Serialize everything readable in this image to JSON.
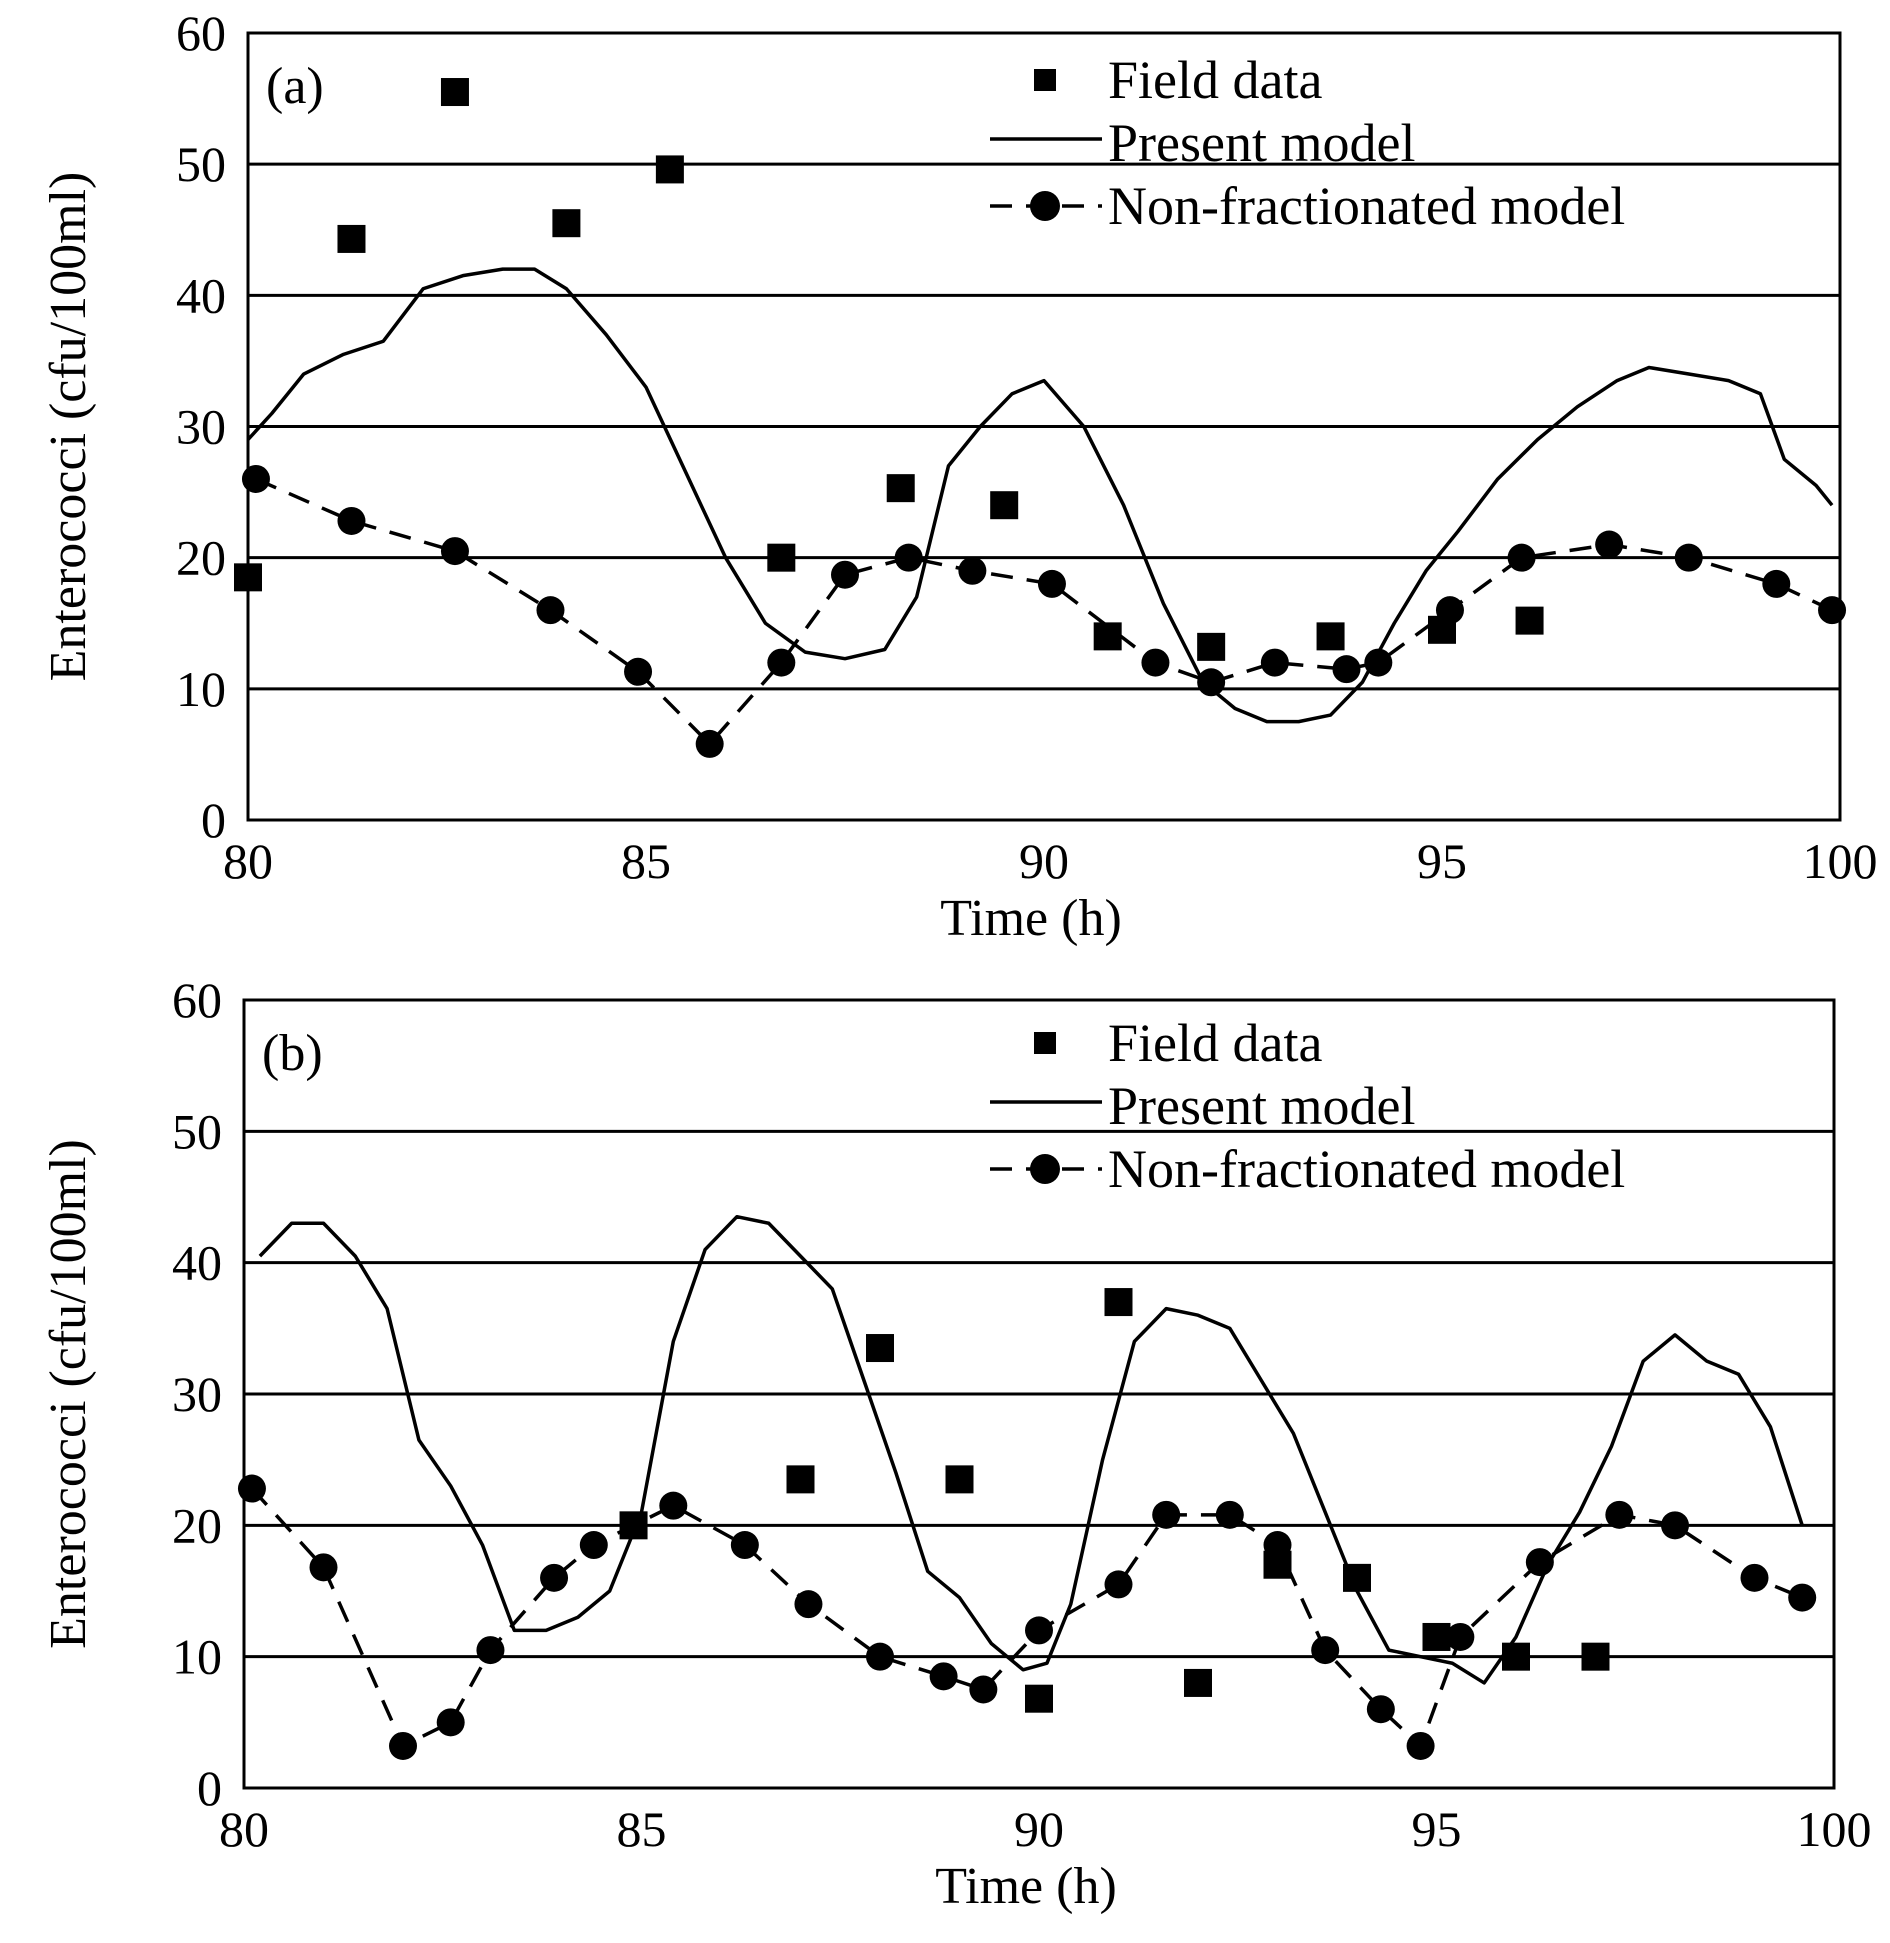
{
  "chart_data": [
    {
      "type": "line",
      "panel_label": "(a)",
      "xlabel": "Time (h)",
      "ylabel": "Enterococci (cfu/100ml)",
      "xlim": [
        80,
        100
      ],
      "ylim": [
        0,
        60
      ],
      "xticks": [
        80,
        85,
        90,
        95,
        100
      ],
      "yticks": [
        0,
        10,
        20,
        30,
        40,
        50,
        60
      ],
      "grid": "horizontal",
      "legend_position": "top-right",
      "series": [
        {
          "name": "Field data",
          "marker": "square",
          "x": [
            80.0,
            81.3,
            82.6,
            84.0,
            85.3,
            86.7,
            88.2,
            89.5,
            90.8,
            92.1,
            93.6,
            95.0,
            96.1
          ],
          "y": [
            18.5,
            44.3,
            55.5,
            45.5,
            49.6,
            20.0,
            25.3,
            24.0,
            14.0,
            13.2,
            14.0,
            14.5,
            15.2
          ]
        },
        {
          "name": "Present model",
          "marker": "none",
          "x": [
            80.0,
            80.3,
            80.7,
            81.2,
            81.7,
            82.2,
            82.7,
            83.2,
            83.6,
            84.0,
            84.5,
            85.0,
            85.5,
            86.0,
            86.5,
            87.0,
            87.5,
            88.0,
            88.4,
            88.8,
            89.2,
            89.6,
            90.0,
            90.5,
            91.0,
            91.5,
            92.0,
            92.4,
            92.8,
            93.2,
            93.6,
            94.0,
            94.4,
            94.8,
            95.2,
            95.7,
            96.2,
            96.7,
            97.2,
            97.6,
            98.1,
            98.6,
            99.0,
            99.3,
            99.7,
            99.9
          ],
          "y": [
            29.0,
            31.0,
            34.0,
            35.5,
            36.5,
            40.5,
            41.5,
            42.0,
            42.0,
            40.5,
            37.0,
            33.0,
            26.5,
            20.0,
            15.0,
            12.8,
            12.3,
            13.0,
            17.0,
            27.0,
            30.0,
            32.5,
            33.5,
            30.0,
            24.0,
            16.5,
            10.5,
            8.5,
            7.5,
            7.5,
            8.0,
            10.5,
            15.0,
            19.0,
            22.0,
            26.0,
            29.0,
            31.5,
            33.5,
            34.5,
            34.0,
            33.5,
            32.5,
            27.5,
            25.5,
            24.0
          ]
        },
        {
          "name": "Non-fractionated model",
          "marker": "circle",
          "x": [
            80.1,
            81.3,
            82.6,
            83.8,
            84.9,
            85.8,
            86.7,
            87.5,
            88.3,
            89.1,
            90.1,
            91.4,
            92.1,
            92.9,
            93.8,
            94.2,
            95.1,
            96.0,
            97.1,
            98.1,
            99.2,
            99.9
          ],
          "y": [
            26.0,
            22.8,
            20.5,
            16.0,
            11.3,
            5.8,
            12.0,
            18.7,
            20.0,
            19.0,
            18.0,
            12.0,
            10.5,
            12.0,
            11.5,
            12.0,
            16.0,
            20.0,
            21.0,
            20.0,
            18.0,
            16.0
          ]
        }
      ]
    },
    {
      "type": "line",
      "panel_label": "(b)",
      "xlabel": "Time (h)",
      "ylabel": "Enterococci (cfu/100ml)",
      "xlim": [
        80,
        100
      ],
      "ylim": [
        0,
        60
      ],
      "xticks": [
        80,
        85,
        90,
        95,
        100
      ],
      "yticks": [
        0,
        10,
        20,
        30,
        40,
        50,
        60
      ],
      "grid": "horizontal",
      "legend_position": "top-right",
      "series": [
        {
          "name": "Field data",
          "marker": "square",
          "x": [
            84.9,
            87.0,
            88.0,
            89.0,
            90.0,
            91.0,
            92.0,
            93.0,
            94.0,
            95.0,
            96.0,
            97.0
          ],
          "y": [
            20.0,
            23.5,
            33.5,
            23.5,
            6.8,
            37.0,
            8.0,
            17.0,
            16.0,
            11.5,
            10.0,
            10.0
          ]
        },
        {
          "name": "Present model",
          "marker": "none",
          "x": [
            80.2,
            80.6,
            81.0,
            81.4,
            81.8,
            82.2,
            82.6,
            83.0,
            83.4,
            83.8,
            84.2,
            84.6,
            85.0,
            85.4,
            85.8,
            86.2,
            86.6,
            87.0,
            87.4,
            87.8,
            88.2,
            88.6,
            89.0,
            89.4,
            89.8,
            90.1,
            90.4,
            90.8,
            91.2,
            91.6,
            92.0,
            92.4,
            92.8,
            93.2,
            93.6,
            94.0,
            94.4,
            94.8,
            95.2,
            95.6,
            96.0,
            96.4,
            96.8,
            97.2,
            97.6,
            98.0,
            98.4,
            98.8,
            99.2,
            99.6
          ],
          "y": [
            40.5,
            43.0,
            43.0,
            40.5,
            36.5,
            26.5,
            23.0,
            18.5,
            12.0,
            12.0,
            13.0,
            15.0,
            21.0,
            34.0,
            41.0,
            43.5,
            43.0,
            40.5,
            38.0,
            31.0,
            24.0,
            16.5,
            14.5,
            11.0,
            9.0,
            9.5,
            14.0,
            25.0,
            34.0,
            36.5,
            36.0,
            35.0,
            31.0,
            27.0,
            21.0,
            15.0,
            10.5,
            10.0,
            9.5,
            8.0,
            11.5,
            17.0,
            21.0,
            26.0,
            32.5,
            34.5,
            32.5,
            31.5,
            27.5,
            20.0
          ]
        },
        {
          "name": "Non-fractionated model",
          "marker": "circle",
          "x": [
            80.1,
            81.0,
            82.0,
            82.6,
            83.1,
            83.9,
            84.4,
            85.4,
            86.3,
            87.1,
            88.0,
            88.8,
            89.3,
            90.0,
            91.0,
            91.6,
            92.4,
            93.0,
            93.6,
            94.3,
            94.8,
            95.3,
            96.3,
            97.3,
            98.0,
            99.0,
            99.6
          ],
          "y": [
            22.8,
            16.8,
            3.2,
            5.0,
            10.5,
            16.0,
            18.5,
            21.5,
            18.5,
            14.0,
            10.0,
            8.5,
            7.5,
            12.0,
            15.5,
            20.8,
            20.8,
            18.5,
            10.5,
            6.0,
            3.2,
            11.5,
            17.2,
            20.8,
            20.0,
            16.0,
            14.5
          ]
        }
      ]
    }
  ]
}
